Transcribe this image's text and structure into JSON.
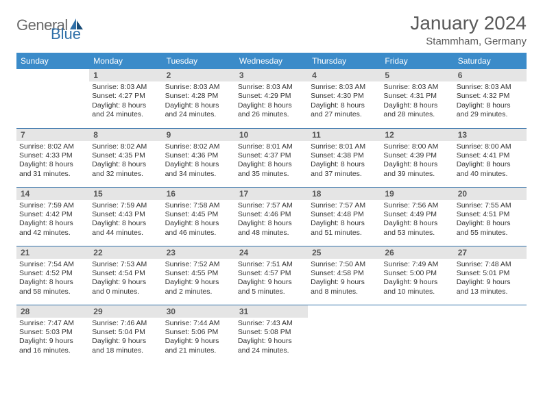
{
  "logo": {
    "general": "General",
    "blue": "Blue"
  },
  "title": "January 2024",
  "location": "Stammham, Germany",
  "colors": {
    "header_bg": "#3b8bc9",
    "header_text": "#ffffff",
    "daynum_bg": "#e5e5e5",
    "row_border": "#2f6fa8",
    "logo_gray": "#6a6a6a",
    "logo_blue": "#2f6fa8",
    "title_color": "#5a5a5a"
  },
  "day_headers": [
    "Sunday",
    "Monday",
    "Tuesday",
    "Wednesday",
    "Thursday",
    "Friday",
    "Saturday"
  ],
  "weeks": [
    [
      {
        "num": "",
        "lines": [
          "",
          "",
          "",
          ""
        ],
        "empty": true
      },
      {
        "num": "1",
        "lines": [
          "Sunrise: 8:03 AM",
          "Sunset: 4:27 PM",
          "Daylight: 8 hours",
          "and 24 minutes."
        ]
      },
      {
        "num": "2",
        "lines": [
          "Sunrise: 8:03 AM",
          "Sunset: 4:28 PM",
          "Daylight: 8 hours",
          "and 24 minutes."
        ]
      },
      {
        "num": "3",
        "lines": [
          "Sunrise: 8:03 AM",
          "Sunset: 4:29 PM",
          "Daylight: 8 hours",
          "and 26 minutes."
        ]
      },
      {
        "num": "4",
        "lines": [
          "Sunrise: 8:03 AM",
          "Sunset: 4:30 PM",
          "Daylight: 8 hours",
          "and 27 minutes."
        ]
      },
      {
        "num": "5",
        "lines": [
          "Sunrise: 8:03 AM",
          "Sunset: 4:31 PM",
          "Daylight: 8 hours",
          "and 28 minutes."
        ]
      },
      {
        "num": "6",
        "lines": [
          "Sunrise: 8:03 AM",
          "Sunset: 4:32 PM",
          "Daylight: 8 hours",
          "and 29 minutes."
        ]
      }
    ],
    [
      {
        "num": "7",
        "lines": [
          "Sunrise: 8:02 AM",
          "Sunset: 4:33 PM",
          "Daylight: 8 hours",
          "and 31 minutes."
        ]
      },
      {
        "num": "8",
        "lines": [
          "Sunrise: 8:02 AM",
          "Sunset: 4:35 PM",
          "Daylight: 8 hours",
          "and 32 minutes."
        ]
      },
      {
        "num": "9",
        "lines": [
          "Sunrise: 8:02 AM",
          "Sunset: 4:36 PM",
          "Daylight: 8 hours",
          "and 34 minutes."
        ]
      },
      {
        "num": "10",
        "lines": [
          "Sunrise: 8:01 AM",
          "Sunset: 4:37 PM",
          "Daylight: 8 hours",
          "and 35 minutes."
        ]
      },
      {
        "num": "11",
        "lines": [
          "Sunrise: 8:01 AM",
          "Sunset: 4:38 PM",
          "Daylight: 8 hours",
          "and 37 minutes."
        ]
      },
      {
        "num": "12",
        "lines": [
          "Sunrise: 8:00 AM",
          "Sunset: 4:39 PM",
          "Daylight: 8 hours",
          "and 39 minutes."
        ]
      },
      {
        "num": "13",
        "lines": [
          "Sunrise: 8:00 AM",
          "Sunset: 4:41 PM",
          "Daylight: 8 hours",
          "and 40 minutes."
        ]
      }
    ],
    [
      {
        "num": "14",
        "lines": [
          "Sunrise: 7:59 AM",
          "Sunset: 4:42 PM",
          "Daylight: 8 hours",
          "and 42 minutes."
        ]
      },
      {
        "num": "15",
        "lines": [
          "Sunrise: 7:59 AM",
          "Sunset: 4:43 PM",
          "Daylight: 8 hours",
          "and 44 minutes."
        ]
      },
      {
        "num": "16",
        "lines": [
          "Sunrise: 7:58 AM",
          "Sunset: 4:45 PM",
          "Daylight: 8 hours",
          "and 46 minutes."
        ]
      },
      {
        "num": "17",
        "lines": [
          "Sunrise: 7:57 AM",
          "Sunset: 4:46 PM",
          "Daylight: 8 hours",
          "and 48 minutes."
        ]
      },
      {
        "num": "18",
        "lines": [
          "Sunrise: 7:57 AM",
          "Sunset: 4:48 PM",
          "Daylight: 8 hours",
          "and 51 minutes."
        ]
      },
      {
        "num": "19",
        "lines": [
          "Sunrise: 7:56 AM",
          "Sunset: 4:49 PM",
          "Daylight: 8 hours",
          "and 53 minutes."
        ]
      },
      {
        "num": "20",
        "lines": [
          "Sunrise: 7:55 AM",
          "Sunset: 4:51 PM",
          "Daylight: 8 hours",
          "and 55 minutes."
        ]
      }
    ],
    [
      {
        "num": "21",
        "lines": [
          "Sunrise: 7:54 AM",
          "Sunset: 4:52 PM",
          "Daylight: 8 hours",
          "and 58 minutes."
        ]
      },
      {
        "num": "22",
        "lines": [
          "Sunrise: 7:53 AM",
          "Sunset: 4:54 PM",
          "Daylight: 9 hours",
          "and 0 minutes."
        ]
      },
      {
        "num": "23",
        "lines": [
          "Sunrise: 7:52 AM",
          "Sunset: 4:55 PM",
          "Daylight: 9 hours",
          "and 2 minutes."
        ]
      },
      {
        "num": "24",
        "lines": [
          "Sunrise: 7:51 AM",
          "Sunset: 4:57 PM",
          "Daylight: 9 hours",
          "and 5 minutes."
        ]
      },
      {
        "num": "25",
        "lines": [
          "Sunrise: 7:50 AM",
          "Sunset: 4:58 PM",
          "Daylight: 9 hours",
          "and 8 minutes."
        ]
      },
      {
        "num": "26",
        "lines": [
          "Sunrise: 7:49 AM",
          "Sunset: 5:00 PM",
          "Daylight: 9 hours",
          "and 10 minutes."
        ]
      },
      {
        "num": "27",
        "lines": [
          "Sunrise: 7:48 AM",
          "Sunset: 5:01 PM",
          "Daylight: 9 hours",
          "and 13 minutes."
        ]
      }
    ],
    [
      {
        "num": "28",
        "lines": [
          "Sunrise: 7:47 AM",
          "Sunset: 5:03 PM",
          "Daylight: 9 hours",
          "and 16 minutes."
        ]
      },
      {
        "num": "29",
        "lines": [
          "Sunrise: 7:46 AM",
          "Sunset: 5:04 PM",
          "Daylight: 9 hours",
          "and 18 minutes."
        ]
      },
      {
        "num": "30",
        "lines": [
          "Sunrise: 7:44 AM",
          "Sunset: 5:06 PM",
          "Daylight: 9 hours",
          "and 21 minutes."
        ]
      },
      {
        "num": "31",
        "lines": [
          "Sunrise: 7:43 AM",
          "Sunset: 5:08 PM",
          "Daylight: 9 hours",
          "and 24 minutes."
        ]
      },
      {
        "num": "",
        "lines": [
          "",
          "",
          "",
          ""
        ],
        "empty": true
      },
      {
        "num": "",
        "lines": [
          "",
          "",
          "",
          ""
        ],
        "empty": true
      },
      {
        "num": "",
        "lines": [
          "",
          "",
          "",
          ""
        ],
        "empty": true
      }
    ]
  ]
}
